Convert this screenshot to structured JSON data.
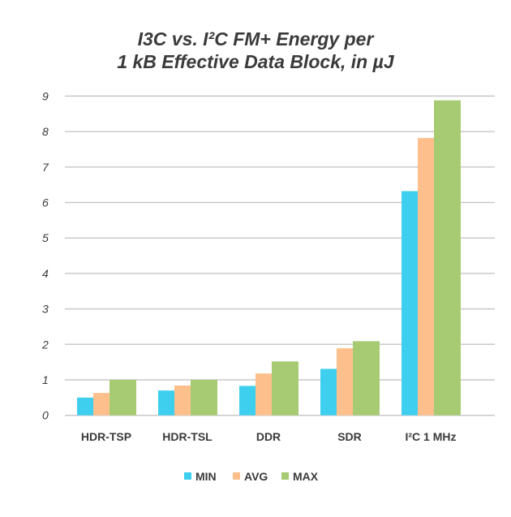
{
  "chart_data": {
    "type": "bar",
    "title_line1": "I3C vs. I²C FM+ Energy per",
    "title_line2": "1 kB Effective Data Block, in µJ",
    "categories": [
      "HDR-TSP",
      "HDR-TSL",
      "DDR",
      "SDR",
      "I²C 1 MHz"
    ],
    "series": [
      {
        "name": "MIN",
        "color": "#3fcfee",
        "values": [
          0.5,
          0.7,
          0.83,
          1.31,
          6.32
        ]
      },
      {
        "name": "AVG",
        "color": "#fdc08c",
        "values": [
          0.63,
          0.84,
          1.18,
          1.89,
          7.82
        ]
      },
      {
        "name": "MAX",
        "color": "#a7cb73",
        "values": [
          1.0,
          1.0,
          1.52,
          2.09,
          8.88
        ]
      }
    ],
    "ylim": [
      0,
      9
    ],
    "yticks": [
      0,
      1,
      2,
      3,
      4,
      5,
      6,
      7,
      8,
      9
    ],
    "grid": true,
    "legend": "bottom-center"
  }
}
